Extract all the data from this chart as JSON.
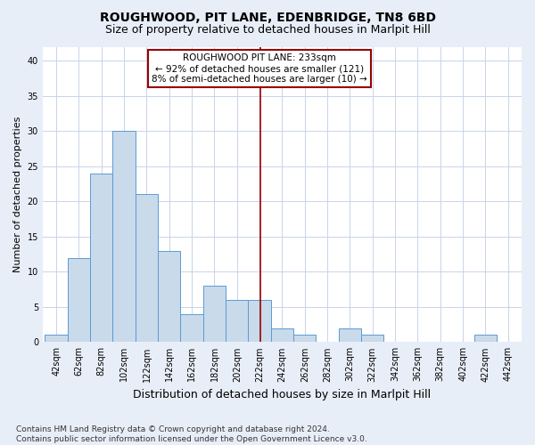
{
  "title": "ROUGHWOOD, PIT LANE, EDENBRIDGE, TN8 6BD",
  "subtitle": "Size of property relative to detached houses in Marlpit Hill",
  "xlabel": "Distribution of detached houses by size in Marlpit Hill",
  "ylabel": "Number of detached properties",
  "bin_starts": [
    42,
    62,
    82,
    102,
    122,
    142,
    162,
    182,
    202,
    222,
    242,
    262,
    282,
    302,
    322,
    342,
    362,
    382,
    402,
    422,
    442
  ],
  "bar_values": [
    1,
    12,
    24,
    30,
    21,
    13,
    4,
    8,
    6,
    6,
    2,
    1,
    0,
    2,
    1,
    0,
    0,
    0,
    0,
    1,
    0
  ],
  "bin_width": 20,
  "bar_color": "#c9daea",
  "bar_edge_color": "#5b9bd5",
  "reference_line_x": 233,
  "reference_line_color": "#990000",
  "annotation_text": "ROUGHWOOD PIT LANE: 233sqm\n← 92% of detached houses are smaller (121)\n8% of semi-detached houses are larger (10) →",
  "annotation_box_facecolor": "#ffffff",
  "annotation_box_edgecolor": "#990000",
  "ylim": [
    0,
    42
  ],
  "yticks": [
    0,
    5,
    10,
    15,
    20,
    25,
    30,
    35,
    40
  ],
  "grid_color": "#c8d4e8",
  "plot_bg_color": "#ffffff",
  "fig_bg_color": "#e8eef8",
  "footnote": "Contains HM Land Registry data © Crown copyright and database right 2024.\nContains public sector information licensed under the Open Government Licence v3.0.",
  "title_fontsize": 10,
  "subtitle_fontsize": 9,
  "xlabel_fontsize": 9,
  "ylabel_fontsize": 8,
  "tick_fontsize": 7,
  "annotation_fontsize": 7.5,
  "footnote_fontsize": 6.5
}
